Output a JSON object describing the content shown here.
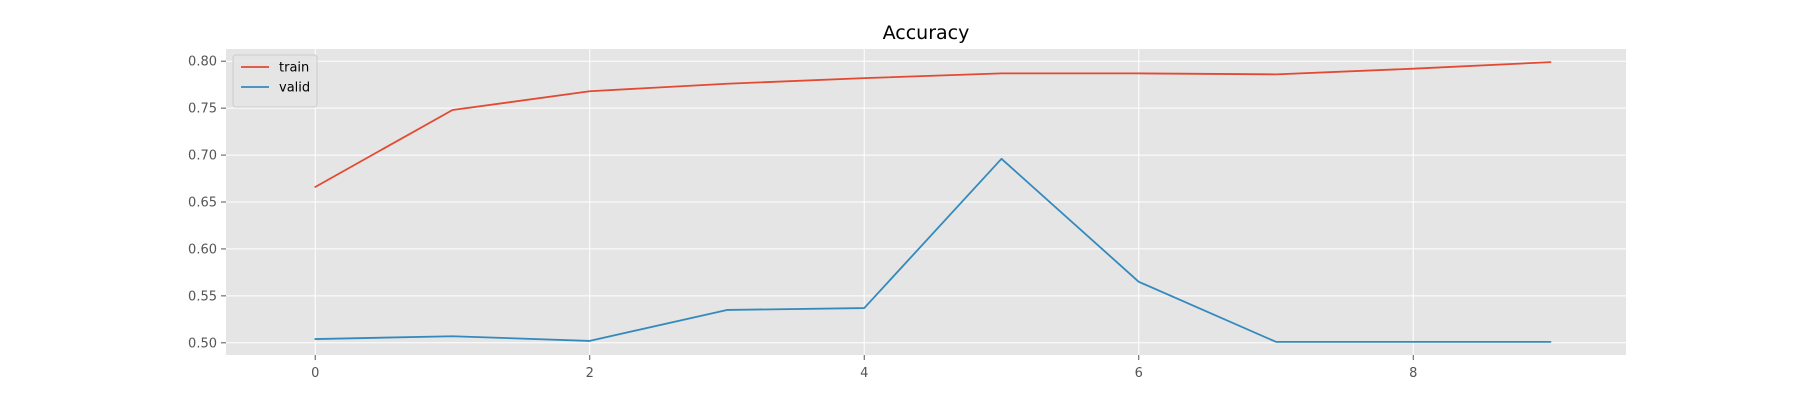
{
  "chart_data": {
    "type": "line",
    "title": "Accuracy",
    "xlabel": "",
    "ylabel": "",
    "x": [
      0,
      1,
      2,
      3,
      4,
      5,
      6,
      7,
      8,
      9
    ],
    "xlim": [
      -0.65,
      9.55
    ],
    "ylim": [
      0.487,
      0.813
    ],
    "xticks": [
      0,
      2,
      4,
      6,
      8
    ],
    "xtick_labels": [
      "0",
      "2",
      "4",
      "6",
      "8"
    ],
    "yticks": [
      0.5,
      0.55,
      0.6,
      0.65,
      0.7,
      0.75,
      0.8
    ],
    "ytick_labels": [
      "0.50",
      "0.55",
      "0.60",
      "0.65",
      "0.70",
      "0.75",
      "0.80"
    ],
    "grid": true,
    "legend_position": "top-left",
    "series": [
      {
        "name": "train",
        "color": "#E24A33",
        "values": [
          0.666,
          0.748,
          0.768,
          0.776,
          0.782,
          0.787,
          0.787,
          0.786,
          0.792,
          0.799
        ]
      },
      {
        "name": "valid",
        "color": "#348ABD",
        "values": [
          0.504,
          0.507,
          0.502,
          0.535,
          0.537,
          0.696,
          0.565,
          0.501,
          0.501,
          0.501
        ]
      }
    ]
  },
  "style": {
    "plot_background": "#E5E5E5",
    "grid_color": "#FFFFFF"
  }
}
